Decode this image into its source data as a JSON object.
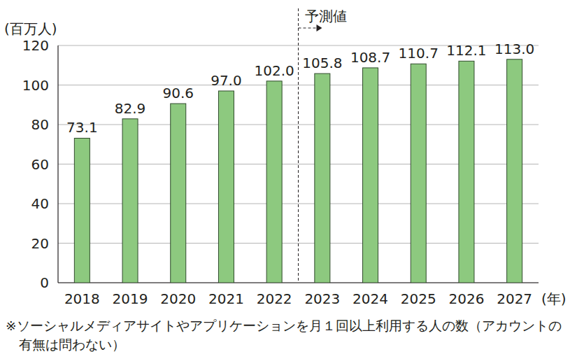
{
  "chart_data": {
    "type": "bar",
    "y_label": "(百万人)",
    "x_label": "(年)",
    "annotation": {
      "text": "予測値",
      "from": "2023"
    },
    "note": "※ソーシャルメディアサイトやアプリケーションを月１回以上利用する人の数（アカウントの有無は問わない）",
    "categories": [
      "2018",
      "2019",
      "2020",
      "2021",
      "2022",
      "2023",
      "2024",
      "2025",
      "2026",
      "2027"
    ],
    "values": [
      73.1,
      82.9,
      90.6,
      97.0,
      102.0,
      105.8,
      108.7,
      110.7,
      112.1,
      113.0
    ],
    "value_labels": [
      "73.1",
      "82.9",
      "90.6",
      "97.0",
      "102.0",
      "105.8",
      "108.7",
      "110.7",
      "112.1",
      "113.0"
    ],
    "color": "#8dc97f",
    "ylim": [
      0,
      120
    ],
    "yticks": [
      0,
      20,
      40,
      60,
      80,
      100,
      120
    ],
    "grid": true,
    "data_labels": true
  }
}
